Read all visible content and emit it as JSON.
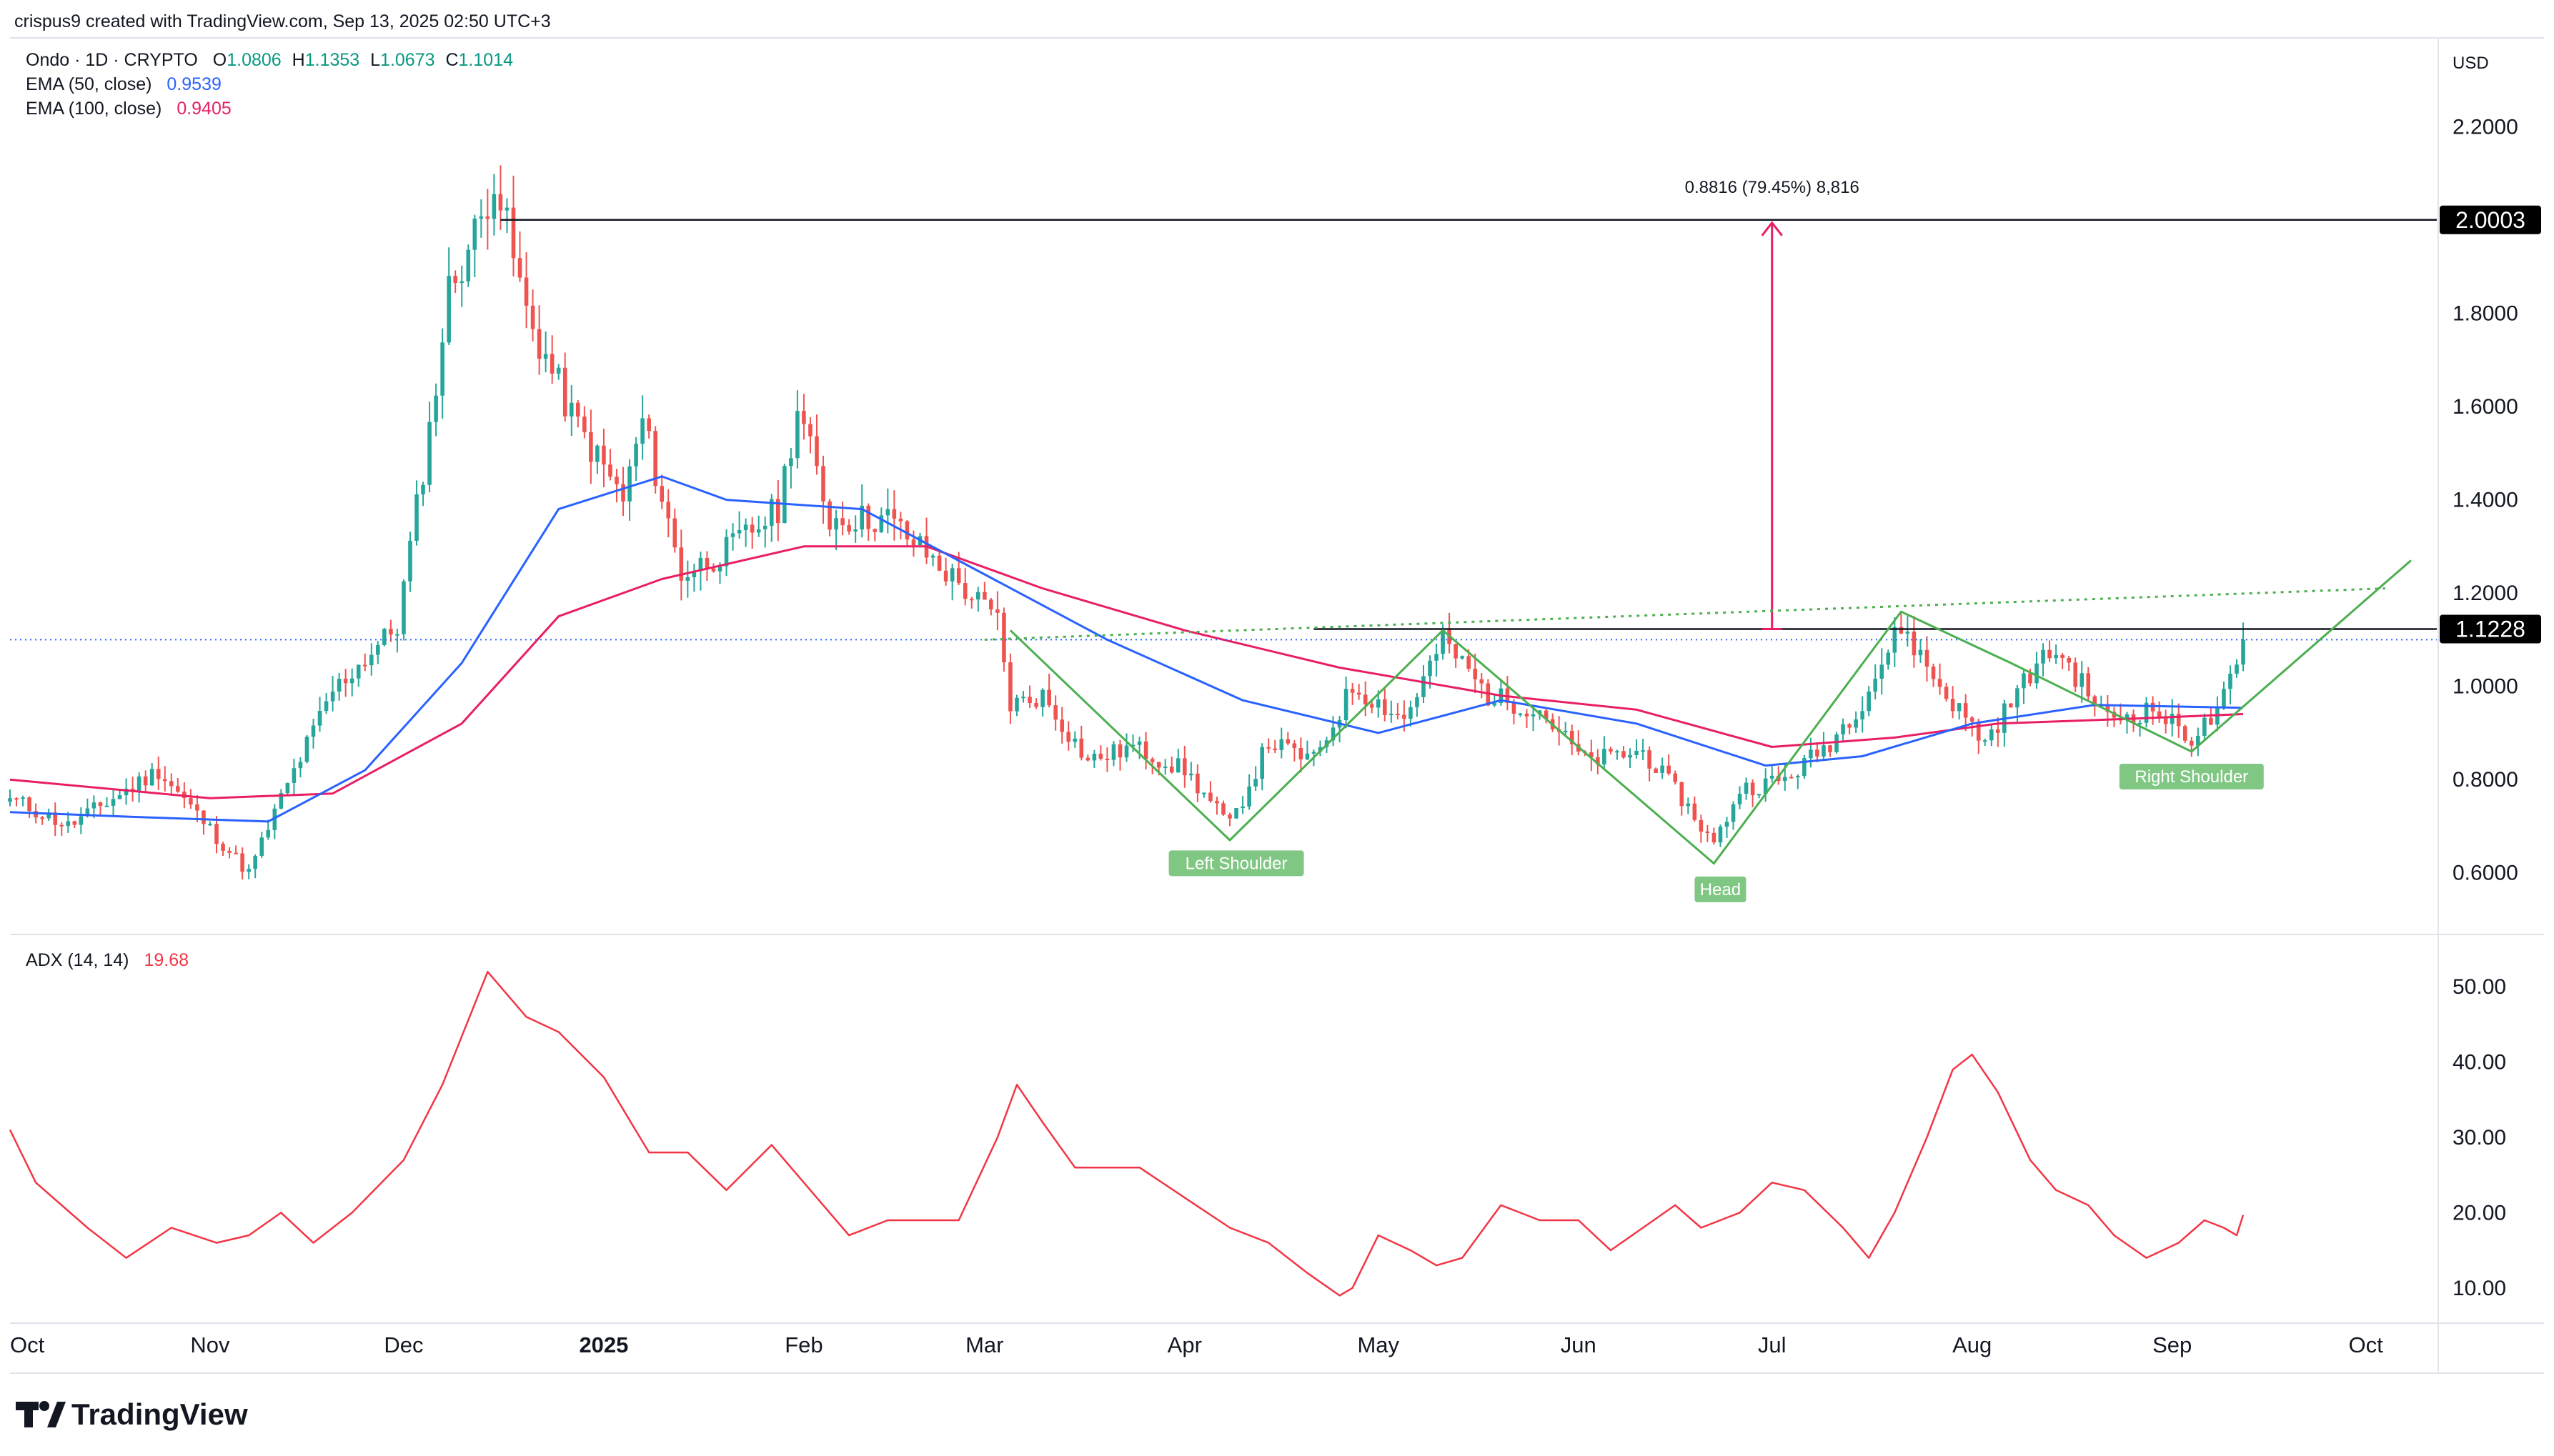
{
  "header": {
    "attribution": "crispus9 created with TradingView.com, Sep 13, 2025 02:50 UTC+3",
    "symbol": "Ondo · 1D · CRYPTO",
    "ohlc": [
      {
        "key": "O",
        "value": "1.0806"
      },
      {
        "key": "H",
        "value": "1.1353"
      },
      {
        "key": "L",
        "value": "1.0673"
      },
      {
        "key": "C",
        "value": "1.1014"
      }
    ],
    "ema50_label": "EMA (50, close)",
    "ema50_value": "0.9539",
    "ema100_label": "EMA (100, close)",
    "ema100_value": "0.9405",
    "adx_label": "ADX (14, 14)",
    "adx_value": "19.68"
  },
  "price_axis": {
    "currency": "USD",
    "ticks": [
      "2.2000",
      "1.8000",
      "1.6000",
      "1.4000",
      "1.2000",
      "1.0000",
      "0.8000",
      "0.6000"
    ],
    "tick_values": [
      2.2,
      1.8,
      1.6,
      1.4,
      1.2,
      1.0,
      0.8,
      0.6
    ],
    "badges": [
      {
        "label": "2.0003",
        "value": 2.0003
      },
      {
        "label": "1.1228",
        "value": 1.1228
      }
    ]
  },
  "adx_axis": {
    "ticks": [
      "50.00",
      "40.00",
      "30.00",
      "20.00",
      "10.00"
    ],
    "tick_values": [
      50,
      40,
      30,
      20,
      10
    ]
  },
  "time_axis": {
    "labels": [
      "Oct",
      "Nov",
      "Dec",
      "2025",
      "Feb",
      "Mar",
      "Apr",
      "May",
      "Jun",
      "Jul",
      "Aug",
      "Sep",
      "Oct"
    ],
    "dates": [
      "2024-10-01",
      "2024-11-01",
      "2024-12-01",
      "2025-01-01",
      "2025-02-01",
      "2025-03-01",
      "2025-04-01",
      "2025-05-01",
      "2025-06-01",
      "2025-07-01",
      "2025-08-01",
      "2025-09-01",
      "2025-10-01"
    ]
  },
  "annotations": {
    "measure_label": "0.8816 (79.45%) 8,816",
    "target_value": 2.0003,
    "neckline_value": 1.1228,
    "left_shoulder": "Left Shoulder",
    "head": "Head",
    "right_shoulder": "Right Shoulder"
  },
  "colors": {
    "up": "#26a69a",
    "down": "#ef5350",
    "ema50": "#2962ff",
    "ema100": "#e91e63",
    "adx": "#f23645",
    "pattern": "#4caf50",
    "pattern_label_bg": "#81c784",
    "text": "#131722",
    "muted": "#787b86",
    "grid_border": "#e0e3eb",
    "last_price_line": "#2962ff"
  },
  "brand": "TradingView",
  "chart_data": [
    {
      "type": "candlestick",
      "title": "Ondo · 1D · CRYPTO",
      "ylabel": "USD",
      "ylim": [
        0.48,
        2.38
      ],
      "x_range": [
        "2024-10-01",
        "2025-10-12"
      ],
      "key_points": [
        {
          "date": "2024-10-01",
          "close": 0.76
        },
        {
          "date": "2024-10-10",
          "close": 0.7
        },
        {
          "date": "2024-10-24",
          "close": 0.82
        },
        {
          "date": "2024-11-05",
          "close": 0.63
        },
        {
          "date": "2024-11-07",
          "close": 0.6
        },
        {
          "date": "2024-11-12",
          "close": 0.76
        },
        {
          "date": "2024-11-20",
          "close": 0.99
        },
        {
          "date": "2024-11-30",
          "close": 1.13
        },
        {
          "date": "2024-12-05",
          "close": 1.55
        },
        {
          "date": "2024-12-08",
          "close": 1.85
        },
        {
          "date": "2024-12-13",
          "close": 2.0
        },
        {
          "date": "2024-12-15",
          "close": 2.1
        },
        {
          "date": "2024-12-20",
          "close": 1.8
        },
        {
          "date": "2024-12-27",
          "close": 1.58
        },
        {
          "date": "2025-01-04",
          "close": 1.4
        },
        {
          "date": "2025-01-07",
          "close": 1.57
        },
        {
          "date": "2025-01-13",
          "close": 1.24
        },
        {
          "date": "2025-01-20",
          "close": 1.29
        },
        {
          "date": "2025-01-28",
          "close": 1.38
        },
        {
          "date": "2025-01-31",
          "close": 1.6
        },
        {
          "date": "2025-02-05",
          "close": 1.36
        },
        {
          "date": "2025-02-14",
          "close": 1.36
        },
        {
          "date": "2025-02-25",
          "close": 1.22
        },
        {
          "date": "2025-03-03",
          "close": 1.14
        },
        {
          "date": "2025-03-05",
          "close": 0.96
        },
        {
          "date": "2025-03-10",
          "close": 0.98
        },
        {
          "date": "2025-03-17",
          "close": 0.84
        },
        {
          "date": "2025-03-24",
          "close": 0.87
        },
        {
          "date": "2025-04-01",
          "close": 0.82
        },
        {
          "date": "2025-04-08",
          "close": 0.7
        },
        {
          "date": "2025-04-14",
          "close": 0.88
        },
        {
          "date": "2025-04-21",
          "close": 0.84
        },
        {
          "date": "2025-04-27",
          "close": 1.0
        },
        {
          "date": "2025-05-05",
          "close": 0.93
        },
        {
          "date": "2025-05-11",
          "close": 1.1
        },
        {
          "date": "2025-05-18",
          "close": 0.98
        },
        {
          "date": "2025-05-26",
          "close": 0.95
        },
        {
          "date": "2025-06-02",
          "close": 0.84
        },
        {
          "date": "2025-06-11",
          "close": 0.86
        },
        {
          "date": "2025-06-17",
          "close": 0.76
        },
        {
          "date": "2025-06-22",
          "close": 0.66
        },
        {
          "date": "2025-06-26",
          "close": 0.78
        },
        {
          "date": "2025-07-03",
          "close": 0.8
        },
        {
          "date": "2025-07-10",
          "close": 0.88
        },
        {
          "date": "2025-07-15",
          "close": 0.97
        },
        {
          "date": "2025-07-21",
          "close": 1.13
        },
        {
          "date": "2025-07-27",
          "close": 1.0
        },
        {
          "date": "2025-08-03",
          "close": 0.88
        },
        {
          "date": "2025-08-10",
          "close": 1.03
        },
        {
          "date": "2025-08-14",
          "close": 1.08
        },
        {
          "date": "2025-08-22",
          "close": 0.93
        },
        {
          "date": "2025-08-29",
          "close": 0.95
        },
        {
          "date": "2025-09-04",
          "close": 0.89
        },
        {
          "date": "2025-09-08",
          "close": 0.94
        },
        {
          "date": "2025-09-11",
          "close": 1.04
        },
        {
          "date": "2025-09-12",
          "close": 1.1
        }
      ],
      "ema50": [
        {
          "date": "2024-10-01",
          "value": 0.73
        },
        {
          "date": "2024-10-20",
          "value": 0.72
        },
        {
          "date": "2024-11-10",
          "value": 0.71
        },
        {
          "date": "2024-11-25",
          "value": 0.82
        },
        {
          "date": "2024-12-10",
          "value": 1.05
        },
        {
          "date": "2024-12-25",
          "value": 1.38
        },
        {
          "date": "2025-01-10",
          "value": 1.45
        },
        {
          "date": "2025-01-20",
          "value": 1.4
        },
        {
          "date": "2025-02-10",
          "value": 1.38
        },
        {
          "date": "2025-03-01",
          "value": 1.24
        },
        {
          "date": "2025-03-20",
          "value": 1.1
        },
        {
          "date": "2025-04-10",
          "value": 0.97
        },
        {
          "date": "2025-05-01",
          "value": 0.9
        },
        {
          "date": "2025-05-20",
          "value": 0.97
        },
        {
          "date": "2025-06-10",
          "value": 0.92
        },
        {
          "date": "2025-06-30",
          "value": 0.83
        },
        {
          "date": "2025-07-15",
          "value": 0.85
        },
        {
          "date": "2025-08-01",
          "value": 0.92
        },
        {
          "date": "2025-08-20",
          "value": 0.96
        },
        {
          "date": "2025-09-12",
          "value": 0.9539
        }
      ],
      "ema100": [
        {
          "date": "2024-10-01",
          "value": 0.8
        },
        {
          "date": "2024-11-01",
          "value": 0.76
        },
        {
          "date": "2024-11-20",
          "value": 0.77
        },
        {
          "date": "2024-12-10",
          "value": 0.92
        },
        {
          "date": "2024-12-25",
          "value": 1.15
        },
        {
          "date": "2025-01-10",
          "value": 1.23
        },
        {
          "date": "2025-02-01",
          "value": 1.3
        },
        {
          "date": "2025-02-20",
          "value": 1.3
        },
        {
          "date": "2025-03-10",
          "value": 1.21
        },
        {
          "date": "2025-04-01",
          "value": 1.12
        },
        {
          "date": "2025-04-25",
          "value": 1.04
        },
        {
          "date": "2025-05-20",
          "value": 0.98
        },
        {
          "date": "2025-06-10",
          "value": 0.95
        },
        {
          "date": "2025-07-01",
          "value": 0.87
        },
        {
          "date": "2025-07-20",
          "value": 0.89
        },
        {
          "date": "2025-08-05",
          "value": 0.92
        },
        {
          "date": "2025-08-25",
          "value": 0.93
        },
        {
          "date": "2025-09-12",
          "value": 0.9405
        }
      ]
    },
    {
      "type": "line",
      "title": "ADX (14, 14)",
      "ylim": [
        6,
        56
      ],
      "x_range": [
        "2024-10-01",
        "2025-10-12"
      ],
      "series": [
        {
          "name": "ADX (14, 14)",
          "points": [
            {
              "date": "2024-10-01",
              "value": 31
            },
            {
              "date": "2024-10-05",
              "value": 24
            },
            {
              "date": "2024-10-13",
              "value": 18
            },
            {
              "date": "2024-10-19",
              "value": 14
            },
            {
              "date": "2024-10-26",
              "value": 18
            },
            {
              "date": "2024-11-02",
              "value": 16
            },
            {
              "date": "2024-11-07",
              "value": 17
            },
            {
              "date": "2024-11-12",
              "value": 20
            },
            {
              "date": "2024-11-17",
              "value": 16
            },
            {
              "date": "2024-11-23",
              "value": 20
            },
            {
              "date": "2024-12-01",
              "value": 27
            },
            {
              "date": "2024-12-07",
              "value": 37
            },
            {
              "date": "2024-12-14",
              "value": 52
            },
            {
              "date": "2024-12-20",
              "value": 46
            },
            {
              "date": "2024-12-25",
              "value": 44
            },
            {
              "date": "2025-01-01",
              "value": 38
            },
            {
              "date": "2025-01-08",
              "value": 28
            },
            {
              "date": "2025-01-14",
              "value": 28
            },
            {
              "date": "2025-01-20",
              "value": 23
            },
            {
              "date": "2025-01-27",
              "value": 29
            },
            {
              "date": "2025-02-03",
              "value": 22
            },
            {
              "date": "2025-02-08",
              "value": 17
            },
            {
              "date": "2025-02-14",
              "value": 19
            },
            {
              "date": "2025-02-20",
              "value": 19
            },
            {
              "date": "2025-02-25",
              "value": 19
            },
            {
              "date": "2025-03-03",
              "value": 30
            },
            {
              "date": "2025-03-06",
              "value": 37
            },
            {
              "date": "2025-03-10",
              "value": 32
            },
            {
              "date": "2025-03-15",
              "value": 26
            },
            {
              "date": "2025-03-25",
              "value": 26
            },
            {
              "date": "2025-04-01",
              "value": 22
            },
            {
              "date": "2025-04-08",
              "value": 18
            },
            {
              "date": "2025-04-14",
              "value": 16
            },
            {
              "date": "2025-04-20",
              "value": 12
            },
            {
              "date": "2025-04-25",
              "value": 9
            },
            {
              "date": "2025-04-27",
              "value": 10
            },
            {
              "date": "2025-05-01",
              "value": 17
            },
            {
              "date": "2025-05-06",
              "value": 15
            },
            {
              "date": "2025-05-10",
              "value": 13
            },
            {
              "date": "2025-05-14",
              "value": 14
            },
            {
              "date": "2025-05-20",
              "value": 21
            },
            {
              "date": "2025-05-26",
              "value": 19
            },
            {
              "date": "2025-06-01",
              "value": 19
            },
            {
              "date": "2025-06-06",
              "value": 15
            },
            {
              "date": "2025-06-11",
              "value": 18
            },
            {
              "date": "2025-06-16",
              "value": 21
            },
            {
              "date": "2025-06-20",
              "value": 18
            },
            {
              "date": "2025-06-26",
              "value": 20
            },
            {
              "date": "2025-07-01",
              "value": 24
            },
            {
              "date": "2025-07-06",
              "value": 23
            },
            {
              "date": "2025-07-12",
              "value": 18
            },
            {
              "date": "2025-07-16",
              "value": 14
            },
            {
              "date": "2025-07-20",
              "value": 20
            },
            {
              "date": "2025-07-25",
              "value": 30
            },
            {
              "date": "2025-07-29",
              "value": 39
            },
            {
              "date": "2025-08-01",
              "value": 41
            },
            {
              "date": "2025-08-05",
              "value": 36
            },
            {
              "date": "2025-08-10",
              "value": 27
            },
            {
              "date": "2025-08-14",
              "value": 23
            },
            {
              "date": "2025-08-19",
              "value": 21
            },
            {
              "date": "2025-08-23",
              "value": 17
            },
            {
              "date": "2025-08-28",
              "value": 14
            },
            {
              "date": "2025-09-02",
              "value": 16
            },
            {
              "date": "2025-09-06",
              "value": 19
            },
            {
              "date": "2025-09-09",
              "value": 18
            },
            {
              "date": "2025-09-11",
              "value": 17
            },
            {
              "date": "2025-09-12",
              "value": 19.68
            }
          ]
        }
      ]
    }
  ]
}
